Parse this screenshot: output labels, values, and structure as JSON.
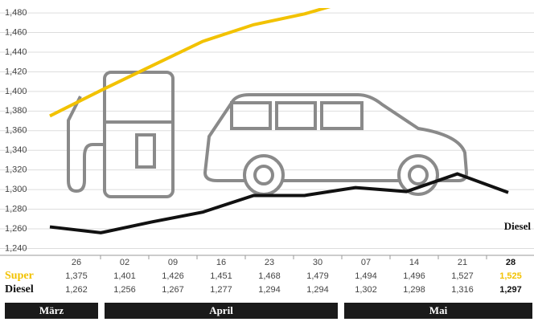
{
  "chart_data": {
    "type": "line",
    "categories": [
      "26",
      "02",
      "09",
      "16",
      "23",
      "30",
      "07",
      "14",
      "21",
      "28"
    ],
    "series": [
      {
        "name": "Super",
        "color": "#f2c200",
        "values": [
          1375,
          1401,
          1426,
          1451,
          1468,
          1479,
          1494,
          1496,
          1527,
          1525
        ],
        "value_labels": [
          "1,375",
          "1,401",
          "1,426",
          "1,451",
          "1,468",
          "1,479",
          "1,494",
          "1,496",
          "1,527",
          "1,525"
        ]
      },
      {
        "name": "Diesel",
        "color": "#111111",
        "values": [
          1262,
          1256,
          1267,
          1277,
          1294,
          1294,
          1302,
          1298,
          1316,
          1297
        ],
        "value_labels": [
          "1,262",
          "1,256",
          "1,267",
          "1,277",
          "1,294",
          "1,294",
          "1,302",
          "1,298",
          "1,316",
          "1,297"
        ]
      }
    ],
    "ylim": [
      1233,
      1485
    ],
    "yticks": [
      {
        "value": 1240,
        "label": "1,240"
      },
      {
        "value": 1260,
        "label": "1,260"
      },
      {
        "value": 1280,
        "label": "1,280"
      },
      {
        "value": 1300,
        "label": "1,300"
      },
      {
        "value": 1320,
        "label": "1,320"
      },
      {
        "value": 1340,
        "label": "1,340"
      },
      {
        "value": 1360,
        "label": "1,360"
      },
      {
        "value": 1380,
        "label": "1,380"
      },
      {
        "value": 1400,
        "label": "1,400"
      },
      {
        "value": 1420,
        "label": "1,420"
      },
      {
        "value": 1440,
        "label": "1,440"
      },
      {
        "value": 1460,
        "label": "1,460"
      },
      {
        "value": 1480,
        "label": "1,480"
      }
    ],
    "grid": true,
    "annotation": "Diesel",
    "months": [
      "März",
      "April",
      "Mai"
    ]
  }
}
